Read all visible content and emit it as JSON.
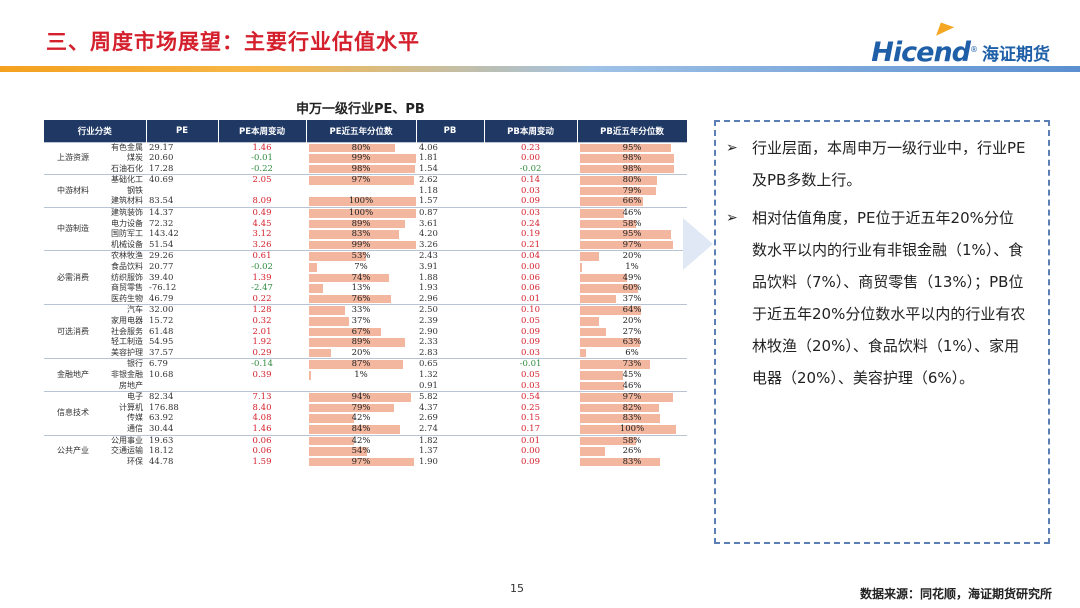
{
  "header": {
    "title": "三、周度市场展望：主要行业估值水平",
    "logo_en": "Hicend",
    "logo_reg": "®",
    "logo_cn": "海证期货"
  },
  "table": {
    "title": "申万一级行业PE、PB",
    "columns": [
      "行业分类",
      "PE",
      "PE本周变动",
      "PE近五年分位数",
      "PB",
      "PB本周变动",
      "PB近五年分位数"
    ],
    "groups": [
      {
        "name": "上游资源",
        "rows": [
          {
            "ind": "有色金属",
            "pe": "29.17",
            "pe_chg": "1.46",
            "pe_pct": "80%",
            "pb": "4.06",
            "pb_chg": "0.23",
            "pb_pct": "95%"
          },
          {
            "ind": "煤炭",
            "pe": "20.60",
            "pe_chg": "-0.01",
            "pe_pct": "99%",
            "pb": "1.81",
            "pb_chg": "0.00",
            "pb_pct": "98%"
          },
          {
            "ind": "石油石化",
            "pe": "17.28",
            "pe_chg": "-0.22",
            "pe_pct": "98%",
            "pb": "1.54",
            "pb_chg": "-0.02",
            "pb_pct": "98%"
          }
        ]
      },
      {
        "name": "中游材料",
        "rows": [
          {
            "ind": "基础化工",
            "pe": "40.69",
            "pe_chg": "2.05",
            "pe_pct": "97%",
            "pb": "2.62",
            "pb_chg": "0.14",
            "pb_pct": "80%"
          },
          {
            "ind": "钢铁",
            "pe": "",
            "pe_chg": "",
            "pe_pct": "",
            "pb": "1.18",
            "pb_chg": "0.03",
            "pb_pct": "79%"
          },
          {
            "ind": "建筑材料",
            "pe": "83.54",
            "pe_chg": "8.09",
            "pe_pct": "100%",
            "pb": "1.57",
            "pb_chg": "0.09",
            "pb_pct": "66%"
          }
        ]
      },
      {
        "name": "中游制造",
        "rows": [
          {
            "ind": "建筑装饰",
            "pe": "14.37",
            "pe_chg": "0.49",
            "pe_pct": "100%",
            "pb": "0.87",
            "pb_chg": "0.03",
            "pb_pct": "46%"
          },
          {
            "ind": "电力设备",
            "pe": "72.32",
            "pe_chg": "4.45",
            "pe_pct": "89%",
            "pb": "3.61",
            "pb_chg": "0.24",
            "pb_pct": "58%"
          },
          {
            "ind": "国防军工",
            "pe": "143.42",
            "pe_chg": "3.12",
            "pe_pct": "83%",
            "pb": "4.20",
            "pb_chg": "0.19",
            "pb_pct": "95%"
          },
          {
            "ind": "机械设备",
            "pe": "51.54",
            "pe_chg": "3.26",
            "pe_pct": "99%",
            "pb": "3.26",
            "pb_chg": "0.21",
            "pb_pct": "97%"
          }
        ]
      },
      {
        "name": "必需消费",
        "rows": [
          {
            "ind": "农林牧渔",
            "pe": "29.26",
            "pe_chg": "0.61",
            "pe_pct": "53%",
            "pb": "2.43",
            "pb_chg": "0.04",
            "pb_pct": "20%"
          },
          {
            "ind": "食品饮料",
            "pe": "20.77",
            "pe_chg": "-0.02",
            "pe_pct": "7%",
            "pb": "3.91",
            "pb_chg": "0.00",
            "pb_pct": "1%"
          },
          {
            "ind": "纺织服饰",
            "pe": "39.40",
            "pe_chg": "1.39",
            "pe_pct": "74%",
            "pb": "1.88",
            "pb_chg": "0.06",
            "pb_pct": "49%"
          },
          {
            "ind": "商贸零售",
            "pe": "-76.12",
            "pe_chg": "-2.47",
            "pe_pct": "13%",
            "pb": "1.93",
            "pb_chg": "0.06",
            "pb_pct": "60%"
          },
          {
            "ind": "医药生物",
            "pe": "46.79",
            "pe_chg": "0.22",
            "pe_pct": "76%",
            "pb": "2.96",
            "pb_chg": "0.01",
            "pb_pct": "37%"
          }
        ]
      },
      {
        "name": "可选消费",
        "rows": [
          {
            "ind": "汽车",
            "pe": "32.00",
            "pe_chg": "1.28",
            "pe_pct": "33%",
            "pb": "2.50",
            "pb_chg": "0.10",
            "pb_pct": "64%"
          },
          {
            "ind": "家用电器",
            "pe": "15.72",
            "pe_chg": "0.32",
            "pe_pct": "37%",
            "pb": "2.39",
            "pb_chg": "0.05",
            "pb_pct": "20%"
          },
          {
            "ind": "社会服务",
            "pe": "61.48",
            "pe_chg": "2.01",
            "pe_pct": "67%",
            "pb": "2.90",
            "pb_chg": "0.09",
            "pb_pct": "27%"
          },
          {
            "ind": "轻工制造",
            "pe": "54.95",
            "pe_chg": "1.92",
            "pe_pct": "89%",
            "pb": "2.33",
            "pb_chg": "0.09",
            "pb_pct": "63%"
          },
          {
            "ind": "美容护理",
            "pe": "37.57",
            "pe_chg": "0.29",
            "pe_pct": "20%",
            "pb": "2.83",
            "pb_chg": "0.03",
            "pb_pct": "6%"
          }
        ]
      },
      {
        "name": "金融地产",
        "rows": [
          {
            "ind": "银行",
            "pe": "6.79",
            "pe_chg": "-0.14",
            "pe_pct": "87%",
            "pb": "0.65",
            "pb_chg": "-0.01",
            "pb_pct": "73%"
          },
          {
            "ind": "非银金融",
            "pe": "10.68",
            "pe_chg": "0.39",
            "pe_pct": "1%",
            "pb": "1.32",
            "pb_chg": "0.05",
            "pb_pct": "45%"
          },
          {
            "ind": "房地产",
            "pe": "",
            "pe_chg": "",
            "pe_pct": "",
            "pb": "0.91",
            "pb_chg": "0.03",
            "pb_pct": "46%"
          }
        ]
      },
      {
        "name": "信息技术",
        "rows": [
          {
            "ind": "电子",
            "pe": "82.34",
            "pe_chg": "7.13",
            "pe_pct": "94%",
            "pb": "5.82",
            "pb_chg": "0.54",
            "pb_pct": "97%"
          },
          {
            "ind": "计算机",
            "pe": "176.88",
            "pe_chg": "8.40",
            "pe_pct": "79%",
            "pb": "4.37",
            "pb_chg": "0.25",
            "pb_pct": "82%"
          },
          {
            "ind": "传媒",
            "pe": "63.92",
            "pe_chg": "4.08",
            "pe_pct": "42%",
            "pb": "2.69",
            "pb_chg": "0.15",
            "pb_pct": "83%"
          },
          {
            "ind": "通信",
            "pe": "30.44",
            "pe_chg": "1.46",
            "pe_pct": "84%",
            "pb": "2.74",
            "pb_chg": "0.17",
            "pb_pct": "100%"
          }
        ]
      },
      {
        "name": "公共产业",
        "rows": [
          {
            "ind": "公用事业",
            "pe": "19.63",
            "pe_chg": "0.06",
            "pe_pct": "42%",
            "pb": "1.82",
            "pb_chg": "0.01",
            "pb_pct": "58%"
          },
          {
            "ind": "交通运输",
            "pe": "18.12",
            "pe_chg": "0.06",
            "pe_pct": "54%",
            "pb": "1.37",
            "pb_chg": "0.00",
            "pb_pct": "26%"
          },
          {
            "ind": "环保",
            "pe": "44.78",
            "pe_chg": "1.59",
            "pe_pct": "97%",
            "pb": "1.90",
            "pb_chg": "0.09",
            "pb_pct": "83%"
          }
        ]
      }
    ]
  },
  "colors": {
    "title_red": "#d4202c",
    "header_navy": "#1f3864",
    "up_red": "#d4202c",
    "down_green": "#2e8b3e",
    "pe_bar_blue": "#bcd3ee",
    "pct_bar_salmon": "#f3b69e",
    "box_border": "#5b7fb5"
  },
  "commentary": {
    "bullets": [
      "行业层面，本周申万一级行业中，行业PE及PB多数上行。",
      "相对估值角度，PE位于近五年20%分位数水平以内的行业有非银金融（1%）、食品饮料（7%）、商贸零售（13%）；PB位于近五年20%分位数水平以内的行业有农林牧渔（20%）、食品饮料（1%）、家用电器（20%）、美容护理（6%）。"
    ]
  },
  "footer": {
    "page_number": "15",
    "source": "数据来源：同花顺，海证期货研究所"
  }
}
